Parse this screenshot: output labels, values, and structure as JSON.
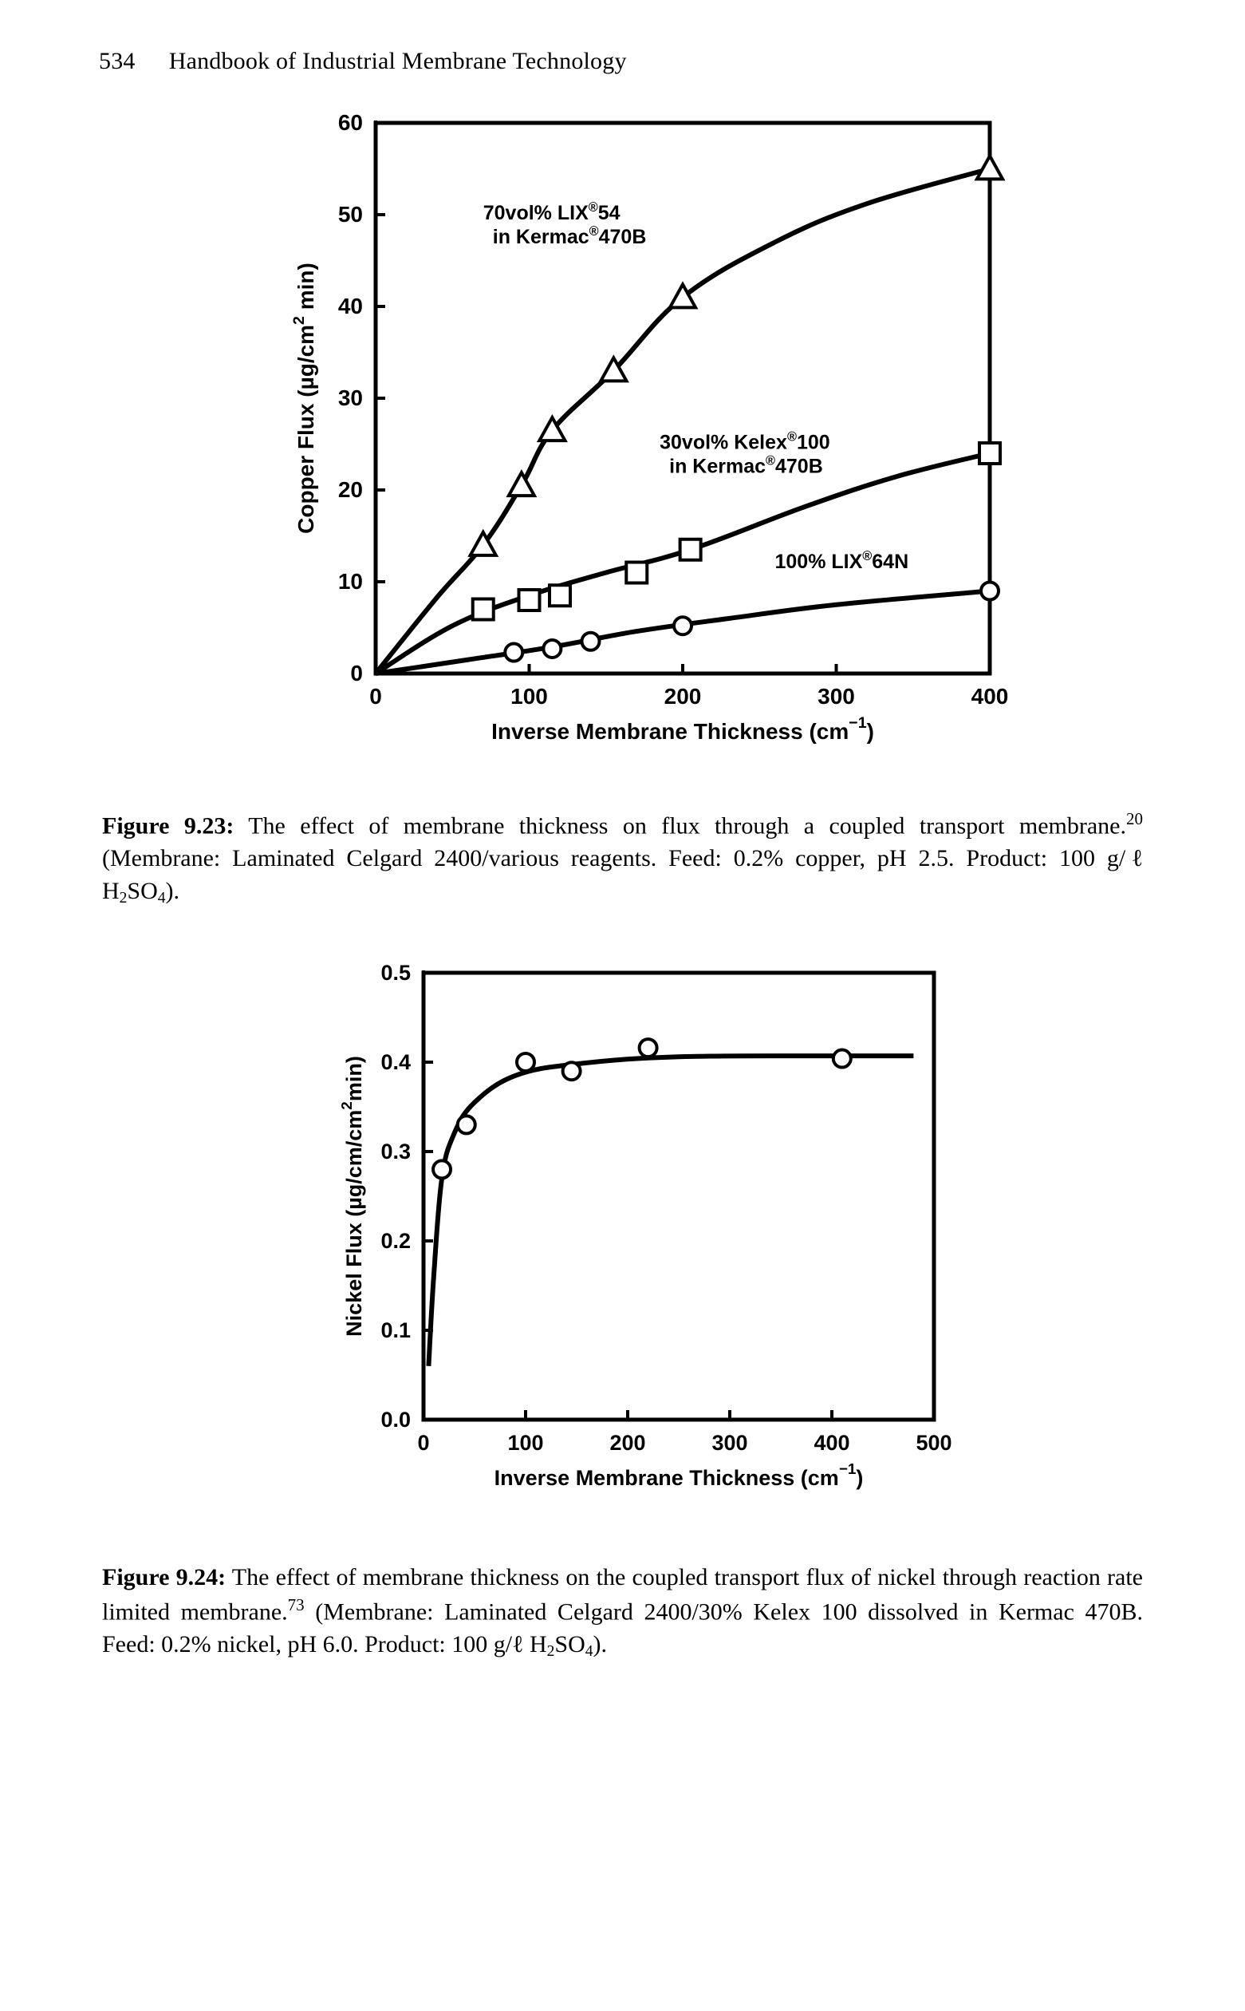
{
  "header": {
    "page_number": "534",
    "title": "Handbook of Industrial Membrane Technology"
  },
  "fig923": {
    "type": "line",
    "xlabel": "Inverse Membrane Thickness  (cm",
    "xlabel_sup": "−1",
    "xlabel_tail": ")",
    "ylabel": "Copper Flux (µg/cm",
    "ylabel_sup": "2",
    "ylabel_tail": " min)",
    "xlim": [
      0,
      400
    ],
    "ylim": [
      0,
      60
    ],
    "xtick_step": 100,
    "ytick_step": 10,
    "background_color": "#ffffff",
    "axis_color": "#000000",
    "line_width": 6,
    "tick_len": 12,
    "series": [
      {
        "name": "70vol% LIX®54 in Kermac®470B",
        "marker": "triangle",
        "marker_size": 14,
        "label1": "70vol% LIX",
        "label1_reg": "®",
        "label1_tail": "54",
        "label2": "in Kermac",
        "label2_reg": "®",
        "label2_tail": "470B",
        "label_pos": [
          70,
          49.5
        ],
        "points": [
          [
            0,
            0
          ],
          [
            70,
            14
          ],
          [
            95,
            20.5
          ],
          [
            115,
            26.5
          ],
          [
            155,
            33
          ],
          [
            200,
            41
          ],
          [
            400,
            55
          ]
        ],
        "curve": [
          [
            0,
            0
          ],
          [
            40,
            8.3
          ],
          [
            70,
            14
          ],
          [
            95,
            20.5
          ],
          [
            115,
            26.5
          ],
          [
            155,
            33
          ],
          [
            200,
            41
          ],
          [
            260,
            47
          ],
          [
            320,
            51.2
          ],
          [
            400,
            55
          ]
        ]
      },
      {
        "name": "30vol% Kelex®100 in Kermac®470B",
        "marker": "square",
        "marker_size": 13,
        "label1": "30vol% Kelex",
        "label1_reg": "®",
        "label1_tail": "100",
        "label2": "in Kermac",
        "label2_reg": "®",
        "label2_tail": "470B",
        "label_pos": [
          185,
          24.5
        ],
        "points": [
          [
            0,
            0
          ],
          [
            70,
            7
          ],
          [
            100,
            8
          ],
          [
            120,
            8.5
          ],
          [
            170,
            11
          ],
          [
            205,
            13.5
          ],
          [
            400,
            24
          ]
        ],
        "curve": [
          [
            0,
            0
          ],
          [
            50,
            5.2
          ],
          [
            100,
            8.5
          ],
          [
            150,
            11
          ],
          [
            205,
            13.5
          ],
          [
            280,
            18.2
          ],
          [
            340,
            21.5
          ],
          [
            400,
            24
          ]
        ]
      },
      {
        "name": "100% LIX®64N",
        "marker": "circle",
        "marker_size": 11,
        "label1": "100% LIX",
        "label1_reg": "®",
        "label1_tail": "64N",
        "label_pos": [
          260,
          11.5
        ],
        "points": [
          [
            0,
            0
          ],
          [
            90,
            2.3
          ],
          [
            115,
            2.7
          ],
          [
            140,
            3.5
          ],
          [
            200,
            5.2
          ],
          [
            400,
            9
          ]
        ],
        "curve": [
          [
            0,
            0
          ],
          [
            60,
            1.5
          ],
          [
            115,
            2.9
          ],
          [
            170,
            4.6
          ],
          [
            230,
            6
          ],
          [
            300,
            7.5
          ],
          [
            400,
            9
          ]
        ]
      }
    ]
  },
  "caption923_label": "Figure 9.23:",
  "caption923_body": " The effect of membrane thickness on flux through a coupled transport membrane.",
  "caption923_ref": "20",
  "caption923_rest": " (Membrane: Laminated Celgard 2400/various reagents. Feed: 0.2% copper, pH 2.5. Product: 100 g/ℓ H",
  "caption923_sub": "2",
  "caption923_mid": "SO",
  "caption923_sub2": "4",
  "caption923_end": ").",
  "fig924": {
    "type": "line",
    "xlabel": "Inverse Membrane Thickness  (cm",
    "xlabel_sup": "−1",
    "xlabel_tail": ")",
    "ylabel": "Nickel Flux (µg/cm/cm",
    "ylabel_sup": "2",
    "ylabel_tail": "min)",
    "xlim": [
      0,
      500
    ],
    "ylim": [
      0,
      0.5
    ],
    "xtick_step": 100,
    "ytick_step": 0.1,
    "background_color": "#ffffff",
    "axis_color": "#000000",
    "line_width": 5,
    "tick_len": 12,
    "series": [
      {
        "marker": "circle",
        "marker_size": 11,
        "points": [
          [
            18,
            0.28
          ],
          [
            42,
            0.33
          ],
          [
            100,
            0.4
          ],
          [
            145,
            0.39
          ],
          [
            220,
            0.416
          ],
          [
            410,
            0.404
          ]
        ],
        "curve": [
          [
            5,
            0.06
          ],
          [
            10,
            0.16
          ],
          [
            18,
            0.27
          ],
          [
            30,
            0.32
          ],
          [
            50,
            0.355
          ],
          [
            90,
            0.385
          ],
          [
            150,
            0.398
          ],
          [
            250,
            0.406
          ],
          [
            410,
            0.407
          ],
          [
            480,
            0.407
          ]
        ]
      }
    ]
  },
  "caption924_label": "Figure 9.24:",
  "caption924_body": " The effect of membrane thickness on the coupled transport flux of nickel through reaction rate limited membrane.",
  "caption924_ref": "73",
  "caption924_rest": " (Membrane: Laminated Celgard 2400/30% Kelex 100 dissolved in Kermac 470B. Feed: 0.2% nickel, pH 6.0. Product: 100 g/ℓ H",
  "caption924_sub": "2",
  "caption924_mid": "SO",
  "caption924_sub2": "4",
  "caption924_end": ")."
}
